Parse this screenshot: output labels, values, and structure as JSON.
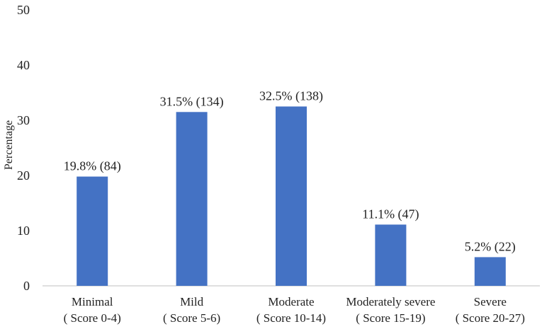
{
  "chart_data": {
    "type": "bar",
    "title": "",
    "xlabel": "",
    "ylabel": "Percentage",
    "ylim": [
      0,
      50
    ],
    "yticks": [
      "0",
      "10",
      "20",
      "30",
      "40",
      "50"
    ],
    "grid": false,
    "bar_color": "#4472C4",
    "axis_color": "#bfbfbf",
    "categories": [
      {
        "line1": "Minimal",
        "line2": "( Score 0-4)"
      },
      {
        "line1": "Mild",
        "line2": "( Score 5-6)"
      },
      {
        "line1": "Moderate",
        "line2": "( Score 10-14)"
      },
      {
        "line1": "Moderately severe",
        "line2": "( Score 15-19)"
      },
      {
        "line1": "Severe",
        "line2": "( Score 20-27)"
      }
    ],
    "values": [
      19.8,
      31.5,
      32.5,
      11.1,
      5.2
    ],
    "data_labels": [
      "19.8% (84)",
      "31.5% (134)",
      "32.5% (138)",
      "11.1% (47)",
      "5.2% (22)"
    ]
  }
}
